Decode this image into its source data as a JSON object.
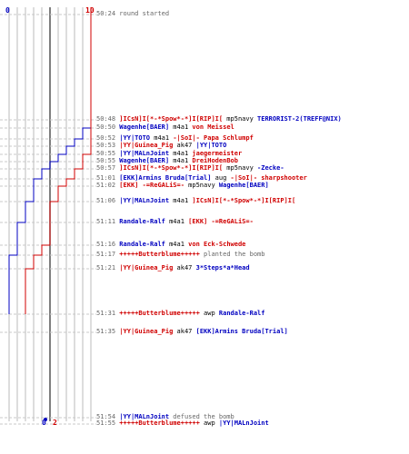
{
  "colors": {
    "t": "#d00000",
    "ct": "#0000c0",
    "grid": "#bbbbbb",
    "gridDark": "#555555",
    "time": "#666666"
  },
  "chart_data": {
    "type": "line",
    "x_start_label": "0",
    "x_end_label": "10",
    "final_ct": "0",
    "final_t": "2",
    "series": [
      {
        "name": "ct",
        "steps": [
          10,
          10,
          9,
          8,
          7,
          6,
          5,
          4,
          3,
          3,
          2,
          1,
          1,
          0,
          0
        ]
      },
      {
        "name": "t",
        "steps": [
          10,
          10,
          10,
          10,
          10,
          9,
          9,
          8,
          7,
          6,
          5,
          5,
          4,
          3,
          2
        ]
      }
    ]
  },
  "events": [
    {
      "time": "50:24",
      "parts": [
        {
          "text": "round started",
          "cls": "note"
        }
      ]
    },
    {
      "time": "50:48",
      "parts": [
        {
          "text": "]ICsN]I[*-*Spow*-*]I[RIP]I[",
          "cls": "p red"
        },
        {
          "text": " mp5navy ",
          "cls": "plain"
        },
        {
          "text": "TERRORIST-2(TREFF@NIX)",
          "cls": "p blue"
        }
      ]
    },
    {
      "time": "50:50",
      "parts": [
        {
          "text": "Wagenhe[BAER]",
          "cls": "p blue"
        },
        {
          "text": " m4a1 ",
          "cls": "plain"
        },
        {
          "text": "von Meissel",
          "cls": "p red"
        }
      ]
    },
    {
      "time": "50:52",
      "parts": [
        {
          "text": "|YY|TOTO",
          "cls": "p blue"
        },
        {
          "text": " m4a1 ",
          "cls": "plain"
        },
        {
          "text": "-|SoI|- Papa Schlumpf",
          "cls": "p red"
        }
      ]
    },
    {
      "time": "50:53",
      "parts": [
        {
          "text": "|YY|Guinea_Pig",
          "cls": "p red"
        },
        {
          "text": " ak47 ",
          "cls": "plain"
        },
        {
          "text": "|YY|TOTO",
          "cls": "p blue"
        }
      ]
    },
    {
      "time": "50:55",
      "parts": [
        {
          "text": "|YY|MALnJoint",
          "cls": "p blue"
        },
        {
          "text": " m4a1 ",
          "cls": "plain"
        },
        {
          "text": "jaegermeister",
          "cls": "p red"
        }
      ]
    },
    {
      "time": "50:55",
      "parts": [
        {
          "text": "Wagenhe[BAER]",
          "cls": "p blue"
        },
        {
          "text": " m4a1 ",
          "cls": "plain"
        },
        {
          "text": "DreiHodenBob",
          "cls": "p red"
        }
      ]
    },
    {
      "time": "50:57",
      "parts": [
        {
          "text": "]ICsN]I[*-*Spow*-*]I[RIP]I[",
          "cls": "p red"
        },
        {
          "text": " mp5navy ",
          "cls": "plain"
        },
        {
          "text": "-Zecke-",
          "cls": "p blue"
        }
      ]
    },
    {
      "time": "51:01",
      "parts": [
        {
          "text": "[EKK]Armins Bruda[Trial]",
          "cls": "p blue"
        },
        {
          "text": " aug ",
          "cls": "plain"
        },
        {
          "text": "-|SoI|- sharpshooter",
          "cls": "p red"
        }
      ]
    },
    {
      "time": "51:02",
      "parts": [
        {
          "text": "[EKK] -=ReGALiS=-",
          "cls": "p red"
        },
        {
          "text": " mp5navy ",
          "cls": "plain"
        },
        {
          "text": "Wagenhe[BAER]",
          "cls": "p blue"
        }
      ]
    },
    {
      "time": "51:06",
      "parts": [
        {
          "text": "|YY|MALnJoint",
          "cls": "p blue"
        },
        {
          "text": " m4a1 ",
          "cls": "plain"
        },
        {
          "text": "]ICsN]I[*-*Spow*-*]I[RIP]I[",
          "cls": "p red"
        }
      ]
    },
    {
      "time": "51:11",
      "parts": [
        {
          "text": "Randale-Ralf",
          "cls": "p blue"
        },
        {
          "text": " m4a1 ",
          "cls": "plain"
        },
        {
          "text": "[EKK] -=ReGALiS=-",
          "cls": "p red"
        }
      ]
    },
    {
      "time": "51:16",
      "parts": [
        {
          "text": "Randale-Ralf",
          "cls": "p blue"
        },
        {
          "text": " m4a1 ",
          "cls": "plain"
        },
        {
          "text": "von Eck-Schwede",
          "cls": "p red"
        }
      ]
    },
    {
      "time": "51:17",
      "parts": [
        {
          "text": "+++++Butterblume+++++",
          "cls": "p red"
        },
        {
          "text": " planted the bomb",
          "cls": "note"
        }
      ]
    },
    {
      "time": "51:21",
      "parts": [
        {
          "text": "|YY|Guinea_Pig",
          "cls": "p red"
        },
        {
          "text": " ak47 ",
          "cls": "plain"
        },
        {
          "text": "3*Steps*a*Head",
          "cls": "p blue"
        }
      ]
    },
    {
      "time": "51:31",
      "parts": [
        {
          "text": "+++++Butterblume+++++",
          "cls": "p red"
        },
        {
          "text": " awp ",
          "cls": "plain"
        },
        {
          "text": "Randale-Ralf",
          "cls": "p blue"
        }
      ]
    },
    {
      "time": "51:35",
      "parts": [
        {
          "text": "|YY|Guinea_Pig",
          "cls": "p red"
        },
        {
          "text": " ak47 ",
          "cls": "plain"
        },
        {
          "text": "[EKK]Armins Bruda[Trial]",
          "cls": "p blue"
        }
      ]
    },
    {
      "time": "51:54",
      "parts": [
        {
          "text": "|YY|MALnJoint",
          "cls": "p blue"
        },
        {
          "text": " defused the bomb",
          "cls": "note"
        }
      ]
    },
    {
      "time": "51:55",
      "parts": [
        {
          "text": "+++++Butterblume+++++",
          "cls": "p red"
        },
        {
          "text": " awp ",
          "cls": "plain"
        },
        {
          "text": "|YY|MALnJoint",
          "cls": "p blue"
        }
      ]
    }
  ]
}
